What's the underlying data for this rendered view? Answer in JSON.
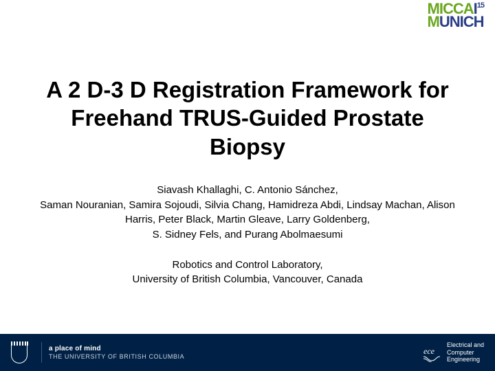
{
  "logo": {
    "line1_green": "MICCA",
    "line1_blue": "I",
    "line1_sup": "15",
    "line2_green": "M",
    "line2_blue": "UNICH"
  },
  "title": "A 2 D-3 D Registration Framework for Freehand TRUS-Guided Prostate Biopsy",
  "authors": "Siavash Khallaghi, C. Antonio Sánchez,\nSaman Nouranian, Samira Sojoudi, Silvia Chang, Hamidreza Abdi, Lindsay Machan, Alison Harris, Peter Black, Martin Gleave, Larry Goldenberg,\nS. Sidney Fels, and Purang Abolmaesumi",
  "affiliation": "Robotics and Control Laboratory,\nUniversity of British Columbia, Vancouver, Canada",
  "footer": {
    "ubc_tag": "a place of mind",
    "ubc_name": "THE UNIVERSITY OF BRITISH COLUMBIA",
    "ece_line1": "Electrical and",
    "ece_line2": "Computer",
    "ece_line3": "Engineering",
    "ece_label": "ece"
  },
  "colors": {
    "footer_bg": "#002145",
    "logo_green": "#6aa61f",
    "logo_blue": "#2a3e87"
  }
}
